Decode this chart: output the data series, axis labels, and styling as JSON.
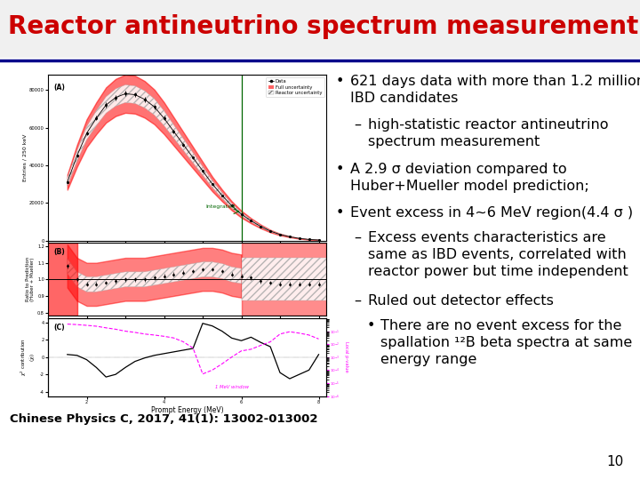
{
  "title": "Reactor antineutrino spectrum measurement",
  "title_color": "#CC0000",
  "title_fontsize": 20,
  "title_bold": true,
  "header_bar_color": "#00008B",
  "bg_color": "#FFFFFF",
  "slide_number": "10",
  "citation": "Chinese Physics C, 2017, 41(1): 13002-013002",
  "citation_bold": true,
  "citation_fontsize": 9.5,
  "bullet_points": [
    {
      "level": 0,
      "bullet": "•",
      "text": "621 days data with more than 1.2 million\nIBD candidates",
      "fontsize": 11.5
    },
    {
      "level": 1,
      "bullet": "–",
      "text": "high-statistic reactor antineutrino\nspectrum measurement",
      "fontsize": 11.5
    },
    {
      "level": 0,
      "bullet": "•",
      "text": "A 2.9 σ deviation compared to\nHuber+Mueller model prediction;",
      "fontsize": 11.5
    },
    {
      "level": 0,
      "bullet": "•",
      "text": "Event excess in 4~6 MeV region(4.4 σ )",
      "fontsize": 11.5
    },
    {
      "level": 1,
      "bullet": "–",
      "text": "Excess events characteristics are\nsame as IBD events, correlated with\nreactor power but time independent",
      "fontsize": 11.5
    },
    {
      "level": 1,
      "bullet": "–",
      "text": "Ruled out detector effects",
      "fontsize": 11.5
    },
    {
      "level": 2,
      "bullet": "•",
      "text": "There are no event excess for the\nspallation ¹²B beta spectra at same\nenergy range",
      "fontsize": 11.5
    }
  ]
}
